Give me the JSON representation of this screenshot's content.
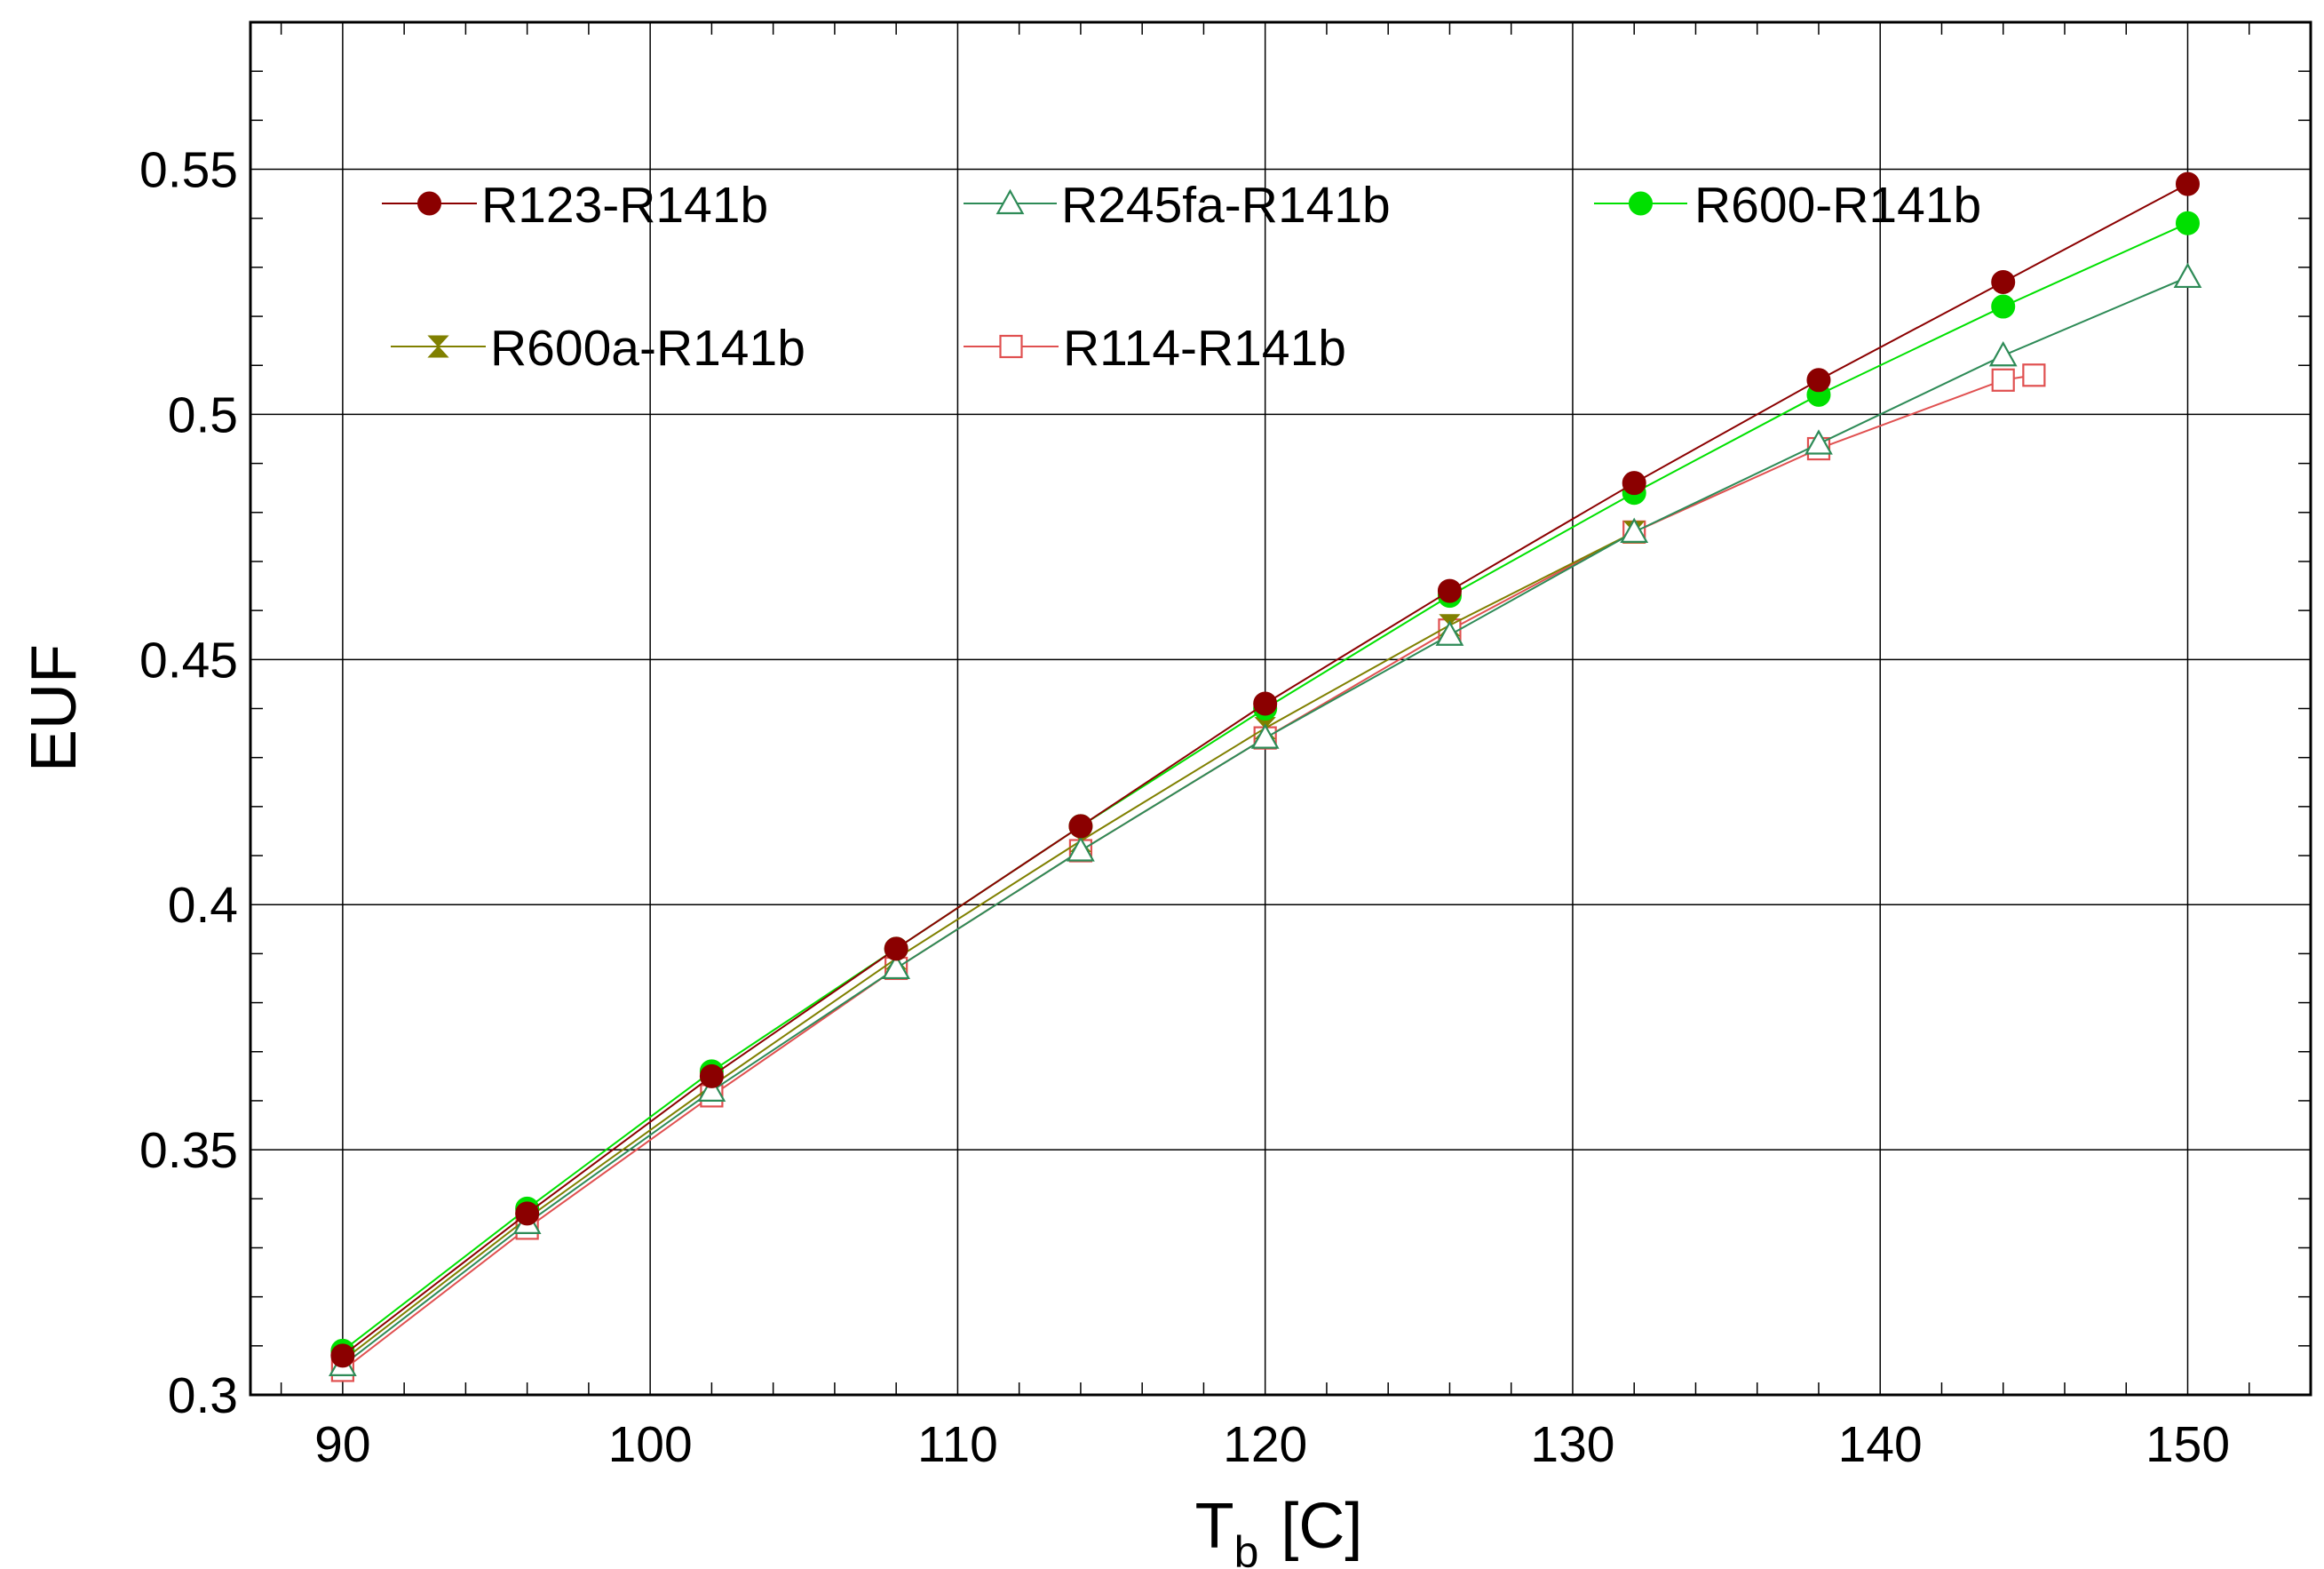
{
  "chart_data": {
    "type": "line",
    "title": "",
    "xlabel": "T",
    "xlabel_subscript": "b",
    "xlabel_unit": "[C]",
    "ylabel": "EUF",
    "xlim": [
      87,
      154
    ],
    "ylim": [
      0.3,
      0.58
    ],
    "xticks": [
      90,
      100,
      110,
      120,
      130,
      140,
      150
    ],
    "xtick_labels": [
      "90",
      "100",
      "110",
      "120",
      "130",
      "140",
      "150"
    ],
    "yticks": [
      0.3,
      0.35,
      0.4,
      0.45,
      0.5,
      0.55
    ],
    "ytick_labels": [
      "0.3",
      "0.35",
      "0.4",
      "0.45",
      "0.5",
      "0.55"
    ],
    "grid": true,
    "legend_position": "top",
    "series": [
      {
        "name": "R123-R141b",
        "color": "#8b0000",
        "marker": "filled-circle",
        "x": [
          90,
          96,
          102,
          108,
          114,
          120,
          126,
          132,
          138,
          144,
          150
        ],
        "y": [
          0.308,
          0.337,
          0.365,
          0.391,
          0.416,
          0.441,
          0.464,
          0.486,
          0.507,
          0.527,
          0.547
        ]
      },
      {
        "name": "R245fa-R141b",
        "color": "#2e8b57",
        "marker": "open-triangle",
        "x": [
          90,
          96,
          102,
          108,
          114,
          120,
          126,
          132,
          138,
          144,
          150
        ],
        "y": [
          0.306,
          0.335,
          0.362,
          0.387,
          0.411,
          0.434,
          0.455,
          0.476,
          0.494,
          0.512,
          0.528
        ]
      },
      {
        "name": "R600-R141b",
        "color": "#00e000",
        "marker": "filled-circle",
        "x": [
          90,
          96,
          102,
          108,
          114,
          120,
          126,
          132,
          138,
          144,
          150
        ],
        "y": [
          0.309,
          0.338,
          0.366,
          0.391,
          0.416,
          0.44,
          0.463,
          0.484,
          0.504,
          0.522,
          0.539
        ]
      },
      {
        "name": "R600a-R141b",
        "color": "#808000",
        "marker": "hourglass",
        "x": [
          90,
          96,
          102,
          108,
          114,
          120,
          126,
          132
        ],
        "y": [
          0.307,
          0.336,
          0.363,
          0.389,
          0.413,
          0.436,
          0.457,
          0.476
        ]
      },
      {
        "name": "R114-R141b",
        "color": "#e05050",
        "marker": "open-square",
        "x": [
          90,
          96,
          102,
          108,
          114,
          120,
          126,
          132,
          138,
          144,
          145
        ],
        "y": [
          0.305,
          0.334,
          0.361,
          0.387,
          0.411,
          0.434,
          0.456,
          0.476,
          0.493,
          0.507,
          0.508
        ]
      }
    ]
  }
}
